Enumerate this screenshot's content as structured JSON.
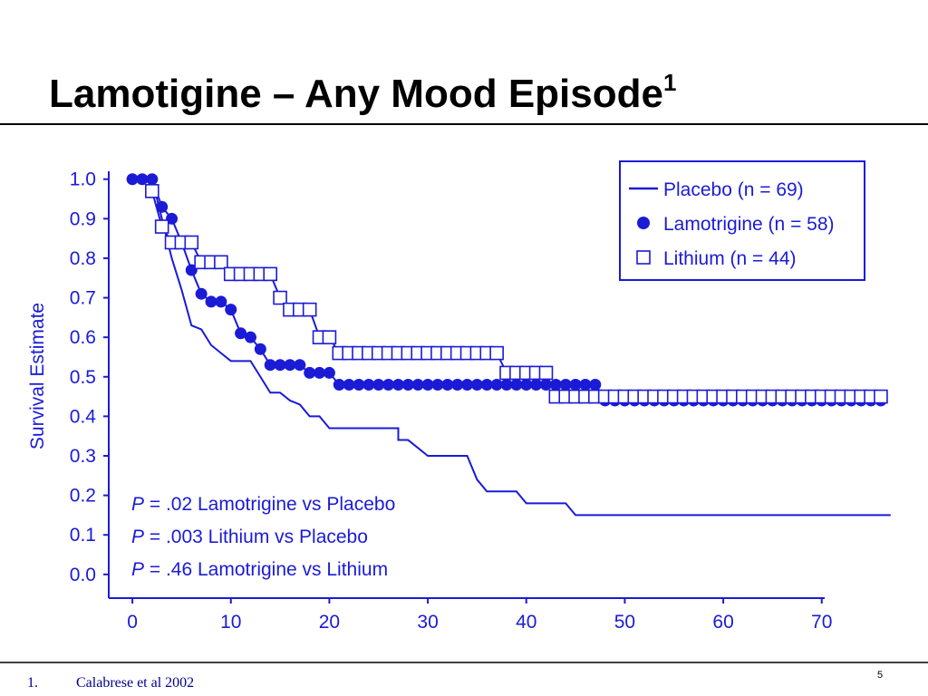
{
  "header": {
    "title": "Lamotigine – Any Mood Episode",
    "title_sup": "1"
  },
  "chart_data": {
    "type": "line",
    "ylabel": "Survival Estimate",
    "xlim": [
      -2.4,
      70.3
    ],
    "xticks": [
      0,
      10,
      20,
      30,
      40,
      50,
      60,
      70
    ],
    "ylim": [
      -0.06,
      1.02
    ],
    "yticks": [
      {
        "value": 0,
        "label": "0.0"
      },
      0.1,
      0.2,
      0.3,
      0.4,
      0.5,
      0.6,
      0.7,
      0.8,
      0.9,
      {
        "value": 1,
        "label": "1.0"
      }
    ],
    "legend": "upper right",
    "series": [
      {
        "name": "Placebo (n = 69)",
        "color": "#1b1bd6",
        "marker": "none",
        "x": [
          2,
          3,
          4,
          5,
          6,
          7,
          8,
          9,
          10,
          12,
          13,
          14,
          15,
          16,
          17,
          18,
          19,
          20,
          27,
          27,
          28,
          30,
          34,
          35,
          36,
          39,
          40,
          44,
          45,
          77
        ],
        "values": [
          1,
          0.9,
          0.8,
          0.72,
          0.63,
          0.62,
          0.58,
          0.56,
          0.54,
          0.54,
          0.5,
          0.46,
          0.46,
          0.44,
          0.43,
          0.4,
          0.4,
          0.37,
          0.37,
          0.34,
          0.34,
          0.3,
          0.3,
          0.24,
          0.21,
          0.21,
          0.18,
          0.18,
          0.15,
          0.15
        ]
      },
      {
        "name": "Lamotrigine (n = 58)",
        "color": "#1b1bd6",
        "marker": "circle",
        "x": [
          0,
          1,
          2,
          3,
          4,
          5,
          6,
          7,
          8,
          9,
          10,
          11,
          12,
          13,
          14,
          15,
          16,
          17,
          18,
          19,
          20,
          21,
          22,
          23,
          24,
          25,
          26,
          27,
          28,
          29,
          30,
          31,
          32,
          33,
          34,
          35,
          36,
          37,
          38,
          39,
          40,
          41,
          42,
          43,
          44,
          45,
          46,
          47,
          48,
          49,
          50,
          51,
          52,
          53,
          54,
          55,
          56,
          57,
          58,
          59,
          60,
          61,
          62,
          63,
          64,
          65,
          66,
          67,
          68,
          69,
          70,
          71,
          72,
          73,
          74,
          75,
          76
        ],
        "values": [
          1,
          1,
          1,
          0.93,
          0.9,
          0.84,
          0.77,
          0.71,
          0.69,
          0.69,
          0.67,
          0.61,
          0.6,
          0.57,
          0.53,
          0.53,
          0.53,
          0.53,
          0.51,
          0.51,
          0.51,
          0.48,
          0.48,
          0.48,
          0.48,
          0.48,
          0.48,
          0.48,
          0.48,
          0.48,
          0.48,
          0.48,
          0.48,
          0.48,
          0.48,
          0.48,
          0.48,
          0.48,
          0.48,
          0.48,
          0.48,
          0.48,
          0.48,
          0.48,
          0.48,
          0.48,
          0.48,
          0.48,
          0.44,
          0.44,
          0.44,
          0.44,
          0.44,
          0.44,
          0.44,
          0.44,
          0.44,
          0.44,
          0.44,
          0.44,
          0.44,
          0.44,
          0.44,
          0.44,
          0.44,
          0.44,
          0.44,
          0.44,
          0.44,
          0.44,
          0.44,
          0.44,
          0.44,
          0.44,
          0.44,
          0.44,
          0.44
        ]
      },
      {
        "name": "Lithium (n = 44)",
        "color": "#1b1bd6",
        "marker": "square",
        "x": [
          2,
          3,
          4,
          5,
          6,
          7,
          8,
          9,
          10,
          11,
          12,
          13,
          14,
          15,
          16,
          17,
          18,
          19,
          20,
          21,
          22,
          23,
          24,
          25,
          26,
          27,
          28,
          29,
          30,
          31,
          32,
          33,
          34,
          35,
          36,
          37,
          38,
          39,
          40,
          41,
          42,
          43,
          44,
          45,
          46,
          47,
          48,
          49,
          50,
          51,
          52,
          53,
          54,
          55,
          56,
          57,
          58,
          59,
          60,
          61,
          62,
          63,
          64,
          65,
          66,
          67,
          68,
          69,
          70,
          71,
          72,
          73,
          74,
          75,
          76
        ],
        "values": [
          0.97,
          0.88,
          0.84,
          0.84,
          0.84,
          0.79,
          0.79,
          0.79,
          0.76,
          0.76,
          0.76,
          0.76,
          0.76,
          0.7,
          0.67,
          0.67,
          0.67,
          0.6,
          0.6,
          0.56,
          0.56,
          0.56,
          0.56,
          0.56,
          0.56,
          0.56,
          0.56,
          0.56,
          0.56,
          0.56,
          0.56,
          0.56,
          0.56,
          0.56,
          0.56,
          0.56,
          0.51,
          0.51,
          0.51,
          0.51,
          0.51,
          0.45,
          0.45,
          0.45,
          0.45,
          0.45,
          0.45,
          0.45,
          0.45,
          0.45,
          0.45,
          0.45,
          0.45,
          0.45,
          0.45,
          0.45,
          0.45,
          0.45,
          0.45,
          0.45,
          0.45,
          0.45,
          0.45,
          0.45,
          0.45,
          0.45,
          0.45,
          0.45,
          0.45,
          0.45,
          0.45,
          0.45,
          0.45,
          0.45,
          0.45
        ]
      }
    ],
    "annotations": [
      {
        "italic": "P",
        "text": " = .02 Lamotrigine vs Placebo"
      },
      {
        "italic": "P",
        "text": " = .003 Lithium vs Placebo"
      },
      {
        "italic": "P",
        "text": " = .46 Lamotrigine vs Lithium"
      }
    ]
  },
  "footer": {
    "note_number": "1.",
    "note": "Calabrese et al 2002",
    "page": "5"
  }
}
